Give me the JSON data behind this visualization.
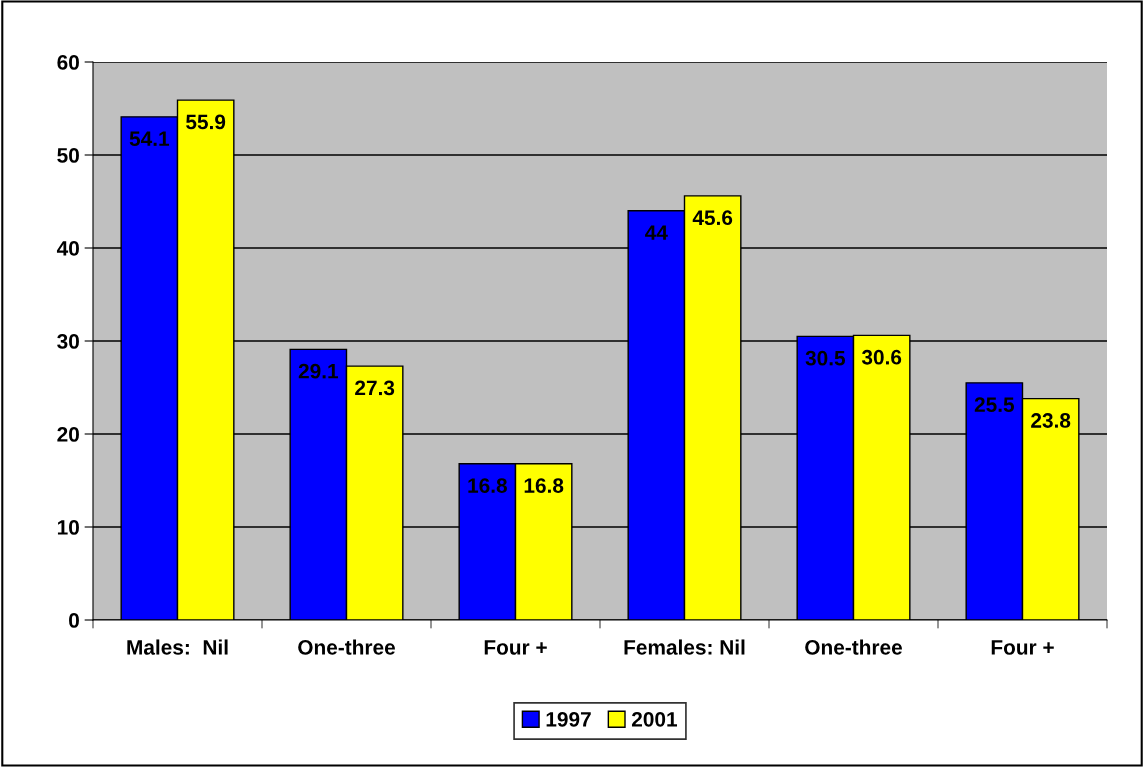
{
  "chart_data": {
    "type": "bar",
    "categories": [
      "Males:  Nil",
      "One-three",
      "Four +",
      "Females: Nil",
      "One-three",
      "Four +"
    ],
    "series": [
      {
        "name": "1997",
        "color": "#0000ff",
        "values": [
          54.1,
          29.1,
          16.8,
          44,
          30.5,
          25.5
        ]
      },
      {
        "name": "2001",
        "color": "#ffff00",
        "values": [
          55.9,
          27.3,
          16.8,
          45.6,
          30.6,
          23.8
        ]
      }
    ],
    "ylim": [
      0,
      60
    ],
    "yticks": [
      0,
      10,
      20,
      30,
      40,
      50,
      60
    ],
    "grid": "y",
    "legend": "bottom",
    "data_labels": true
  }
}
